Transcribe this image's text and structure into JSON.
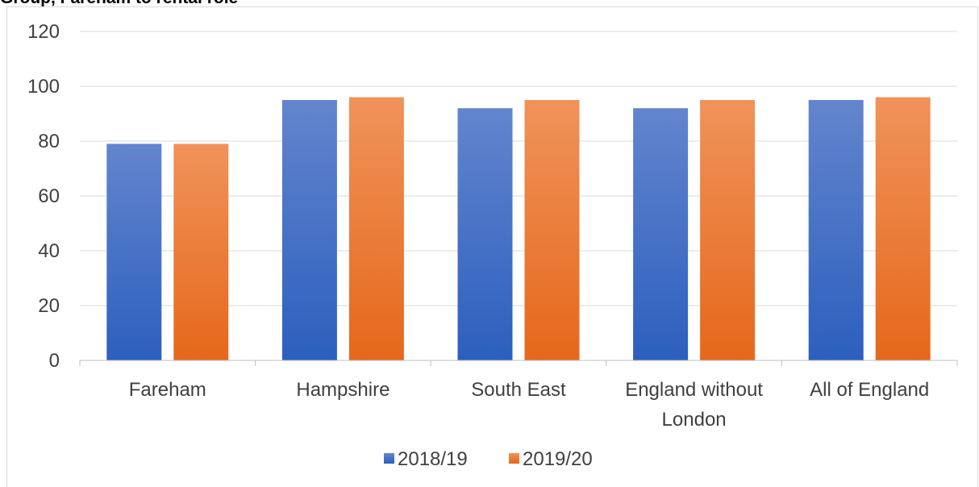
{
  "header": {
    "title_fragment": "Group, Fareham to rental role"
  },
  "chart_data": {
    "type": "bar",
    "categories": [
      "Fareham",
      "Hampshire",
      "South East",
      "England without London",
      "All of England"
    ],
    "category_lines": [
      [
        "Fareham"
      ],
      [
        "Hampshire"
      ],
      [
        "South East"
      ],
      [
        "England without",
        "London"
      ],
      [
        "All of England"
      ]
    ],
    "series": [
      {
        "name": "2018/19",
        "values": [
          79,
          95,
          92,
          92,
          95
        ],
        "color_top": "#6385CD",
        "color_bottom": "#2C5FBE"
      },
      {
        "name": "2019/20",
        "values": [
          79,
          96,
          95,
          95,
          96
        ],
        "color_top": "#F0935A",
        "color_bottom": "#E5681B"
      }
    ],
    "ylim": [
      0,
      120
    ],
    "yticks": [
      0,
      20,
      40,
      60,
      80,
      100,
      120
    ],
    "grid": true,
    "legend": "bottom",
    "title": "",
    "xlabel": "",
    "ylabel": ""
  }
}
